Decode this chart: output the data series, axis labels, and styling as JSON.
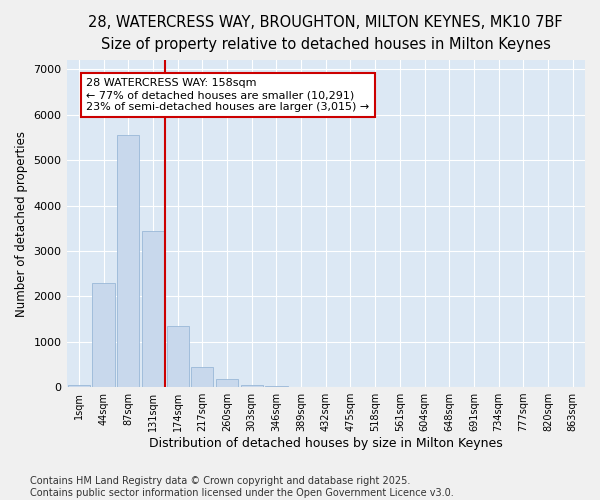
{
  "title1": "28, WATERCRESS WAY, BROUGHTON, MILTON KEYNES, MK10 7BF",
  "title2": "Size of property relative to detached houses in Milton Keynes",
  "xlabel": "Distribution of detached houses by size in Milton Keynes",
  "ylabel": "Number of detached properties",
  "categories": [
    "1sqm",
    "44sqm",
    "87sqm",
    "131sqm",
    "174sqm",
    "217sqm",
    "260sqm",
    "303sqm",
    "346sqm",
    "389sqm",
    "432sqm",
    "475sqm",
    "518sqm",
    "561sqm",
    "604sqm",
    "648sqm",
    "691sqm",
    "734sqm",
    "777sqm",
    "820sqm",
    "863sqm"
  ],
  "values": [
    50,
    2300,
    5550,
    3450,
    1350,
    450,
    175,
    50,
    30,
    5,
    3,
    0,
    0,
    0,
    0,
    0,
    0,
    0,
    0,
    0,
    0
  ],
  "bar_color": "#c8d8ec",
  "bar_edge_color": "#9ab8d8",
  "vline_x": 3.5,
  "vline_color": "#cc0000",
  "annotation_line1": "28 WATERCRESS WAY: 158sqm",
  "annotation_line2": "← 77% of detached houses are smaller (10,291)",
  "annotation_line3": "23% of semi-detached houses are larger (3,015) →",
  "annotation_box_color": "#cc0000",
  "annotation_box_bg": "#ffffff",
  "ylim": [
    0,
    7200
  ],
  "yticks": [
    0,
    1000,
    2000,
    3000,
    4000,
    5000,
    6000,
    7000
  ],
  "bg_color": "#dce8f4",
  "grid_color": "#ffffff",
  "fig_bg_color": "#f0f0f0",
  "footer": "Contains HM Land Registry data © Crown copyright and database right 2025.\nContains public sector information licensed under the Open Government Licence v3.0.",
  "title1_fontsize": 10.5,
  "title2_fontsize": 9.5,
  "xlabel_fontsize": 9,
  "ylabel_fontsize": 8.5,
  "tick_fontsize": 7,
  "annotation_fontsize": 8,
  "footer_fontsize": 7
}
